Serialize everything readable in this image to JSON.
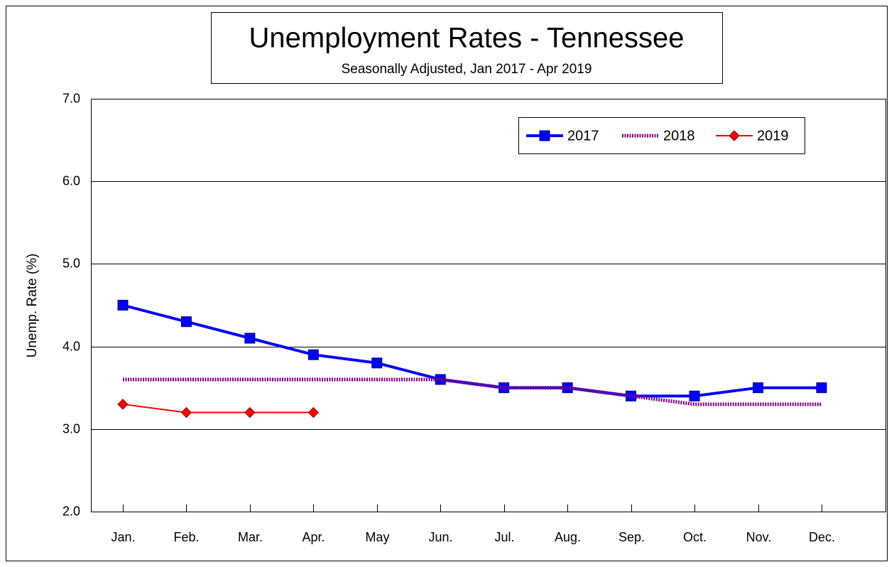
{
  "chart_data": {
    "type": "line",
    "title": "Unemployment Rates - Tennessee",
    "subtitle": "Seasonally Adjusted, Jan 2017 - Apr 2019",
    "y_label": "Unemp. Rate (%)",
    "categories": [
      "Jan.",
      "Feb.",
      "Mar.",
      "Apr.",
      "May",
      "Jun.",
      "Jul.",
      "Aug.",
      "Sep.",
      "Oct.",
      "Nov.",
      "Dec."
    ],
    "series": [
      {
        "name": "2017",
        "color": "#0000ff",
        "marker": "square",
        "values": [
          4.5,
          4.3,
          4.1,
          3.9,
          3.8,
          3.6,
          3.5,
          3.5,
          3.4,
          3.4,
          3.5,
          3.5
        ]
      },
      {
        "name": "2018",
        "color": "#800080",
        "marker": "none",
        "values": [
          3.6,
          3.6,
          3.6,
          3.6,
          3.6,
          3.6,
          3.5,
          3.5,
          3.4,
          3.3,
          3.3,
          3.3
        ]
      },
      {
        "name": "2019",
        "color": "#ff0000",
        "marker": "diamond",
        "values": [
          3.3,
          3.2,
          3.2,
          3.2,
          null,
          null,
          null,
          null,
          null,
          null,
          null,
          null
        ]
      }
    ],
    "ylim": [
      2,
      7
    ],
    "yticks": [
      {
        "value": 2,
        "label": "2.0"
      },
      {
        "value": 3,
        "label": "3.0"
      },
      {
        "value": 4,
        "label": "4.0"
      },
      {
        "value": 5,
        "label": "5.0"
      },
      {
        "value": 6,
        "label": "6.0"
      },
      {
        "value": 7,
        "label": "7.0"
      }
    ],
    "grid": true,
    "legend": "top-right"
  }
}
